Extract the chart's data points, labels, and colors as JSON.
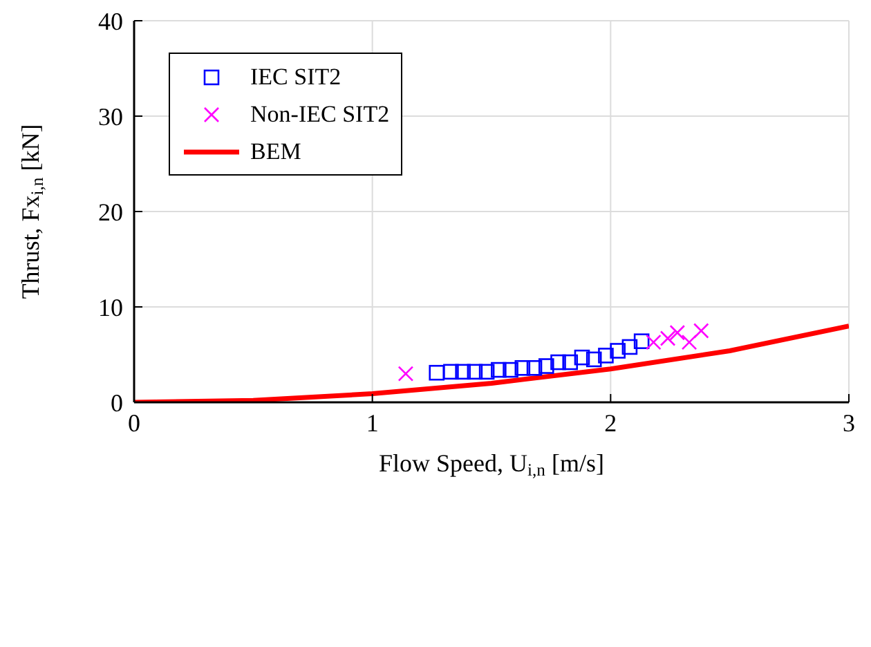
{
  "chart_data": {
    "type": "scatter",
    "xlabel": "Flow Speed, U$_{i,n}$ [m/s]",
    "ylabel": "Thrust, Fx$_{i,n}$ [kN]",
    "xlim": [
      0,
      3
    ],
    "xticks": [
      0,
      1,
      2,
      3
    ],
    "ylim": [
      0,
      40
    ],
    "yticks": [
      0,
      10,
      20,
      30,
      40
    ],
    "grid": true,
    "legend": "top left",
    "series": [
      {
        "name": "IEC SIT2",
        "marker": "square",
        "color": "#0000ff",
        "x": [
          1.27,
          1.33,
          1.38,
          1.43,
          1.48,
          1.53,
          1.58,
          1.63,
          1.68,
          1.73,
          1.78,
          1.83,
          1.88,
          1.93,
          1.98,
          2.03,
          2.08,
          2.13
        ],
        "values": [
          3.1,
          3.2,
          3.2,
          3.2,
          3.2,
          3.4,
          3.4,
          3.6,
          3.6,
          3.8,
          4.2,
          4.2,
          4.7,
          4.5,
          4.9,
          5.4,
          5.8,
          6.4
        ]
      },
      {
        "name": "Non-IEC SIT2",
        "marker": "cross",
        "color": "#ff00ff",
        "x": [
          1.14,
          2.18,
          2.24,
          2.28,
          2.33,
          2.38
        ],
        "values": [
          3.0,
          6.3,
          6.7,
          7.3,
          6.3,
          7.5
        ]
      },
      {
        "name": "BEM",
        "type": "line",
        "marker": "none",
        "line_style": "solid",
        "color": "#ff0000",
        "x": [
          0,
          0.5,
          1,
          1.5,
          2,
          2.5,
          3
        ],
        "values": [
          0,
          0.2,
          0.9,
          2.0,
          3.5,
          5.4,
          8.0
        ]
      }
    ]
  }
}
